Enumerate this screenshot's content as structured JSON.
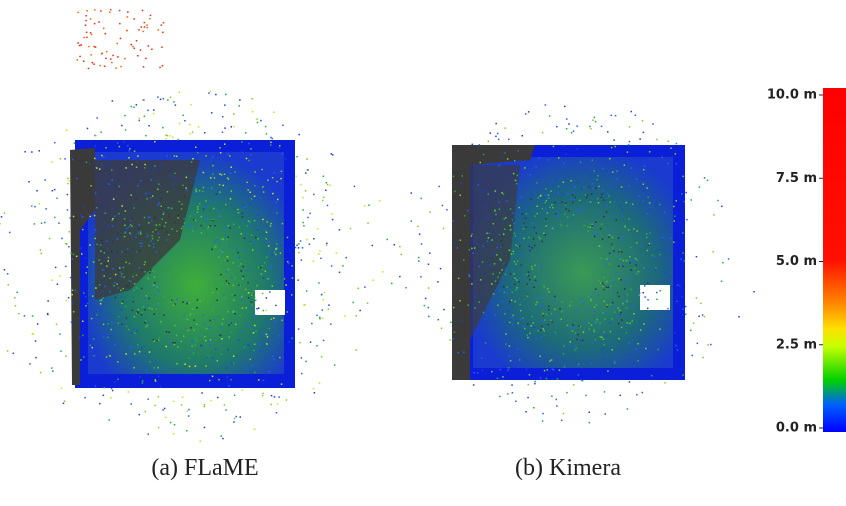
{
  "panels": [
    {
      "caption": "(a) FLaME"
    },
    {
      "caption": "(b) Kimera"
    }
  ],
  "colorbar": {
    "lim": [
      0,
      10
    ],
    "ticks": [
      {
        "value": 10,
        "label": "10.0 m"
      },
      {
        "value": 7.5,
        "label": "7.5 m"
      },
      {
        "value": 5,
        "label": "5.0 m"
      },
      {
        "value": 2.5,
        "label": "2.5 m"
      },
      {
        "value": 0,
        "label": "0.0 m"
      }
    ]
  }
}
